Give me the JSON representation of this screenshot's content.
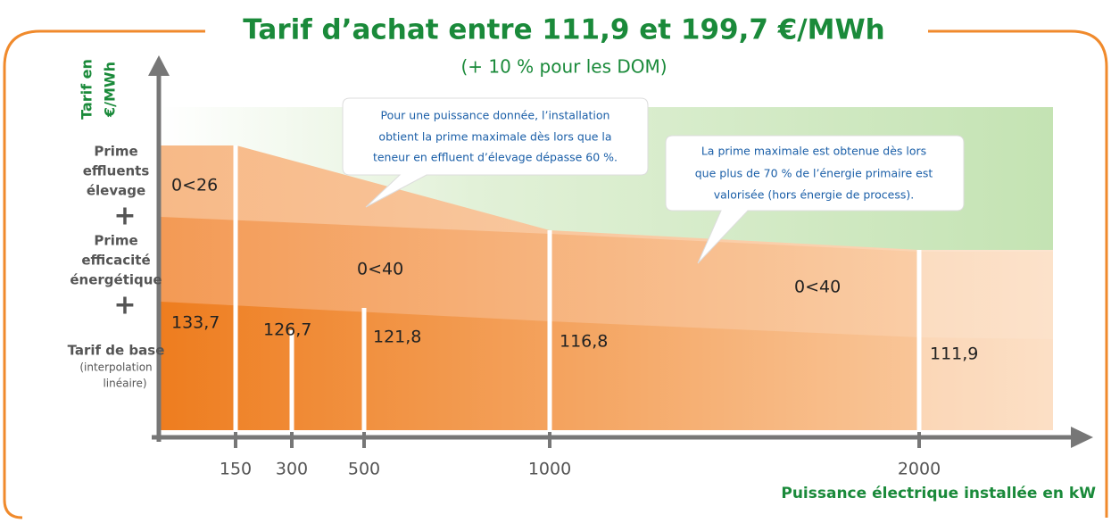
{
  "title": "Tarif d’achat entre 111,9 et 199,7 €/MWh",
  "subtitle": "(+ 10 % pour les DOM)",
  "y_axis_label": [
    "Tarif en",
    "€/MWh"
  ],
  "legend": [
    [
      "Prime",
      "effluents",
      "élevage"
    ],
    [
      "Prime",
      "efficacité",
      "énergétique"
    ],
    [
      "Tarif de base",
      "(interpolation",
      "linéaire)"
    ]
  ],
  "plus": [
    "+",
    "+"
  ],
  "band_labels": [
    "0<26",
    "0<40",
    "0<40"
  ],
  "base_values": [
    "133,7",
    "126,7",
    "121,8",
    "116,8",
    "111,9"
  ],
  "x_ticks": [
    "150",
    "300",
    "500",
    "1000",
    "2000"
  ],
  "x_axis_label": "Puissance électrique installée en kW",
  "callouts": [
    [
      "Pour une puissance donnée, l’installation",
      "obtient la prime maximale dès lors que la",
      "teneur en effluent d’élevage dépasse 60 %."
    ],
    [
      "La prime maximale est obtenue dès lors",
      "que plus de 70 % de l’énergie primaire est",
      "valorisée (hors énergie de process)."
    ]
  ]
}
